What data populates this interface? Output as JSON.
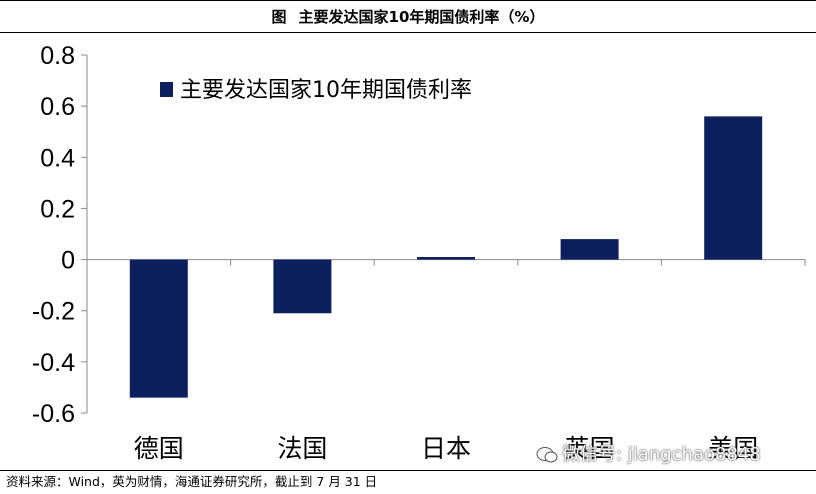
{
  "header": {
    "figure_label": "图",
    "title": "主要发达国家10年期国债利率（%）"
  },
  "footer": {
    "source": "资料来源：Wind，英为财情，海通证券研究所，截止到 7 月 31 日"
  },
  "watermark": {
    "text": "微信号: jiangchao8848"
  },
  "chart_data": {
    "type": "bar",
    "categories": [
      "德国",
      "法国",
      "日本",
      "英国",
      "美国"
    ],
    "series": [
      {
        "name": "主要发达国家10年期国债利率",
        "values": [
          -0.54,
          -0.21,
          0.01,
          0.08,
          0.56
        ]
      }
    ],
    "ylim": [
      -0.6,
      0.8
    ],
    "yticks": [
      "0.8",
      "0.6",
      "0.4",
      "0.2",
      "0",
      "-0.2",
      "-0.4",
      "-0.6"
    ],
    "legend_position": "top-left",
    "grid": false,
    "bar_color": "#0d1f5c"
  }
}
